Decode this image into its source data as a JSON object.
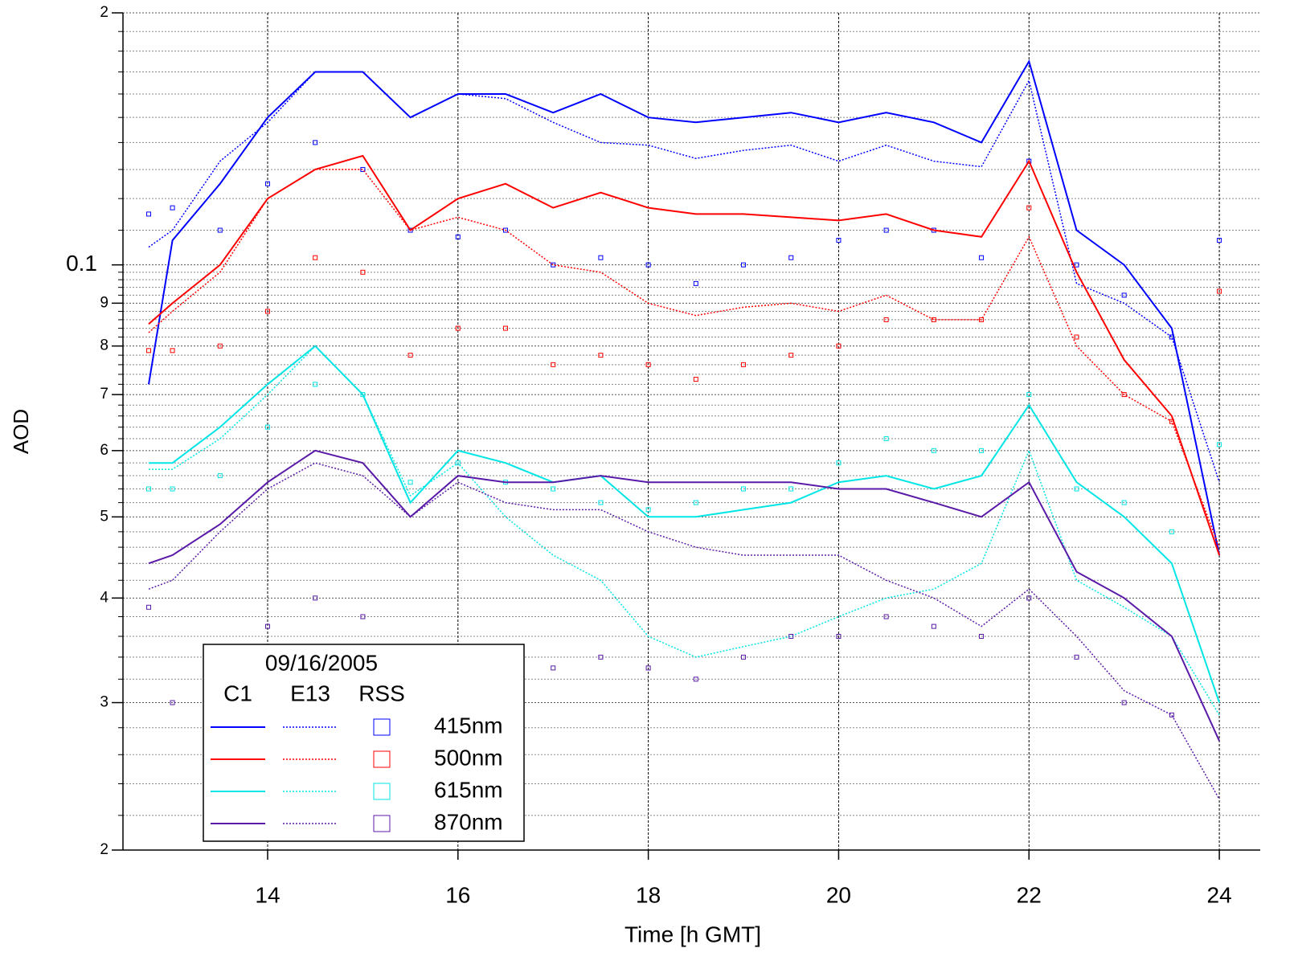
{
  "chart_data": {
    "type": "line",
    "x_label": "Time [h GMT]",
    "y_label": "AOD",
    "log_y": true,
    "grid": true,
    "xlim": [
      12.48,
      24.43
    ],
    "ylim": [
      0.02,
      0.2
    ],
    "xticks": [
      14,
      16,
      18,
      20,
      22,
      24
    ],
    "yticks": [
      {
        "value": 0.2,
        "label": "2"
      },
      0.1,
      {
        "value": 0.09,
        "label": "9"
      },
      {
        "value": 0.08,
        "label": "8"
      },
      {
        "value": 0.07,
        "label": "7"
      },
      {
        "value": 0.06,
        "label": "6"
      },
      {
        "value": 0.05,
        "label": "5"
      },
      {
        "value": 0.04,
        "label": "4"
      },
      {
        "value": 0.03,
        "label": "3"
      },
      {
        "value": 0.02,
        "label": "2"
      }
    ],
    "yminorticks": [
      0.022,
      0.024,
      0.026,
      0.028,
      0.032,
      0.034,
      0.036,
      0.038,
      0.042,
      0.044,
      0.046,
      0.048,
      0.052,
      0.054,
      0.056,
      0.058,
      0.062,
      0.064,
      0.066,
      0.068,
      0.072,
      0.074,
      0.076,
      0.078,
      0.082,
      0.084,
      0.086,
      0.088,
      0.092,
      0.094,
      0.096,
      0.098,
      0.11,
      0.12,
      0.13,
      0.14,
      0.15,
      0.16,
      0.17,
      0.18,
      0.19
    ],
    "legend_title": "09/16/2005",
    "legend_position": "lower left",
    "sources": [
      {
        "name": "C1",
        "style": "solid"
      },
      {
        "name": "E13",
        "style": "dotted"
      },
      {
        "name": "RSS",
        "style": "square"
      }
    ],
    "x": [
      12.75,
      13,
      13.5,
      14,
      14.5,
      15,
      15.5,
      16,
      16.5,
      17,
      17.5,
      18,
      18.5,
      19,
      19.5,
      20,
      20.5,
      21,
      21.5,
      22,
      22.5,
      23,
      23.5,
      24
    ],
    "series": [
      {
        "name": "415nm",
        "color": "#0000ff",
        "values": [
          [
            0.072,
            0.107,
            0.125,
            0.15,
            0.17,
            0.17,
            0.15,
            0.16,
            0.16,
            0.152,
            0.16,
            0.15,
            0.148,
            0.15,
            0.152,
            0.148,
            0.152,
            0.148,
            0.14,
            0.175,
            0.11,
            0.1,
            0.084,
            0.045
          ],
          [
            0.105,
            0.11,
            0.133,
            0.148,
            0.17,
            0.17,
            0.15,
            0.16,
            0.158,
            0.148,
            0.14,
            0.139,
            0.134,
            0.137,
            0.139,
            0.133,
            0.139,
            0.133,
            0.131,
            0.166,
            0.095,
            0.09,
            0.082,
            0.055
          ],
          [
            0.115,
            0.117,
            0.11,
            0.125,
            0.14,
            0.13,
            0.11,
            0.108,
            0.11,
            0.1,
            0.102,
            0.1,
            0.095,
            0.1,
            0.102,
            0.107,
            0.11,
            0.11,
            0.102,
            0.133,
            0.1,
            0.092,
            0.082,
            0.107
          ]
        ]
      },
      {
        "name": "500nm",
        "color": "#ff0000",
        "values": [
          [
            0.085,
            0.09,
            0.1,
            0.12,
            0.13,
            0.135,
            0.11,
            0.12,
            0.125,
            0.117,
            0.122,
            0.117,
            0.115,
            0.115,
            0.114,
            0.113,
            0.115,
            0.11,
            0.108,
            0.133,
            0.098,
            0.077,
            0.066,
            0.045
          ],
          [
            0.083,
            0.088,
            0.098,
            0.12,
            0.13,
            0.13,
            0.11,
            0.114,
            0.11,
            0.1,
            0.098,
            0.09,
            0.087,
            0.089,
            0.09,
            0.088,
            0.092,
            0.086,
            0.086,
            0.108,
            0.08,
            0.07,
            0.065,
            0.046
          ],
          [
            0.079,
            0.079,
            0.08,
            0.088,
            0.102,
            0.098,
            0.078,
            0.084,
            0.084,
            0.076,
            0.078,
            0.076,
            0.073,
            0.076,
            0.078,
            0.08,
            0.086,
            0.086,
            0.086,
            0.117,
            0.082,
            0.07,
            0.065,
            0.093
          ]
        ]
      },
      {
        "name": "615nm",
        "color": "#00e5e5",
        "values": [
          [
            0.058,
            0.058,
            0.064,
            0.072,
            0.08,
            0.07,
            0.052,
            0.06,
            0.058,
            0.055,
            0.056,
            0.05,
            0.05,
            0.051,
            0.052,
            0.055,
            0.056,
            0.054,
            0.056,
            0.068,
            0.055,
            0.05,
            0.044,
            0.03
          ],
          [
            0.057,
            0.057,
            0.062,
            0.07,
            0.08,
            0.07,
            0.053,
            0.058,
            0.05,
            0.045,
            0.042,
            0.036,
            0.034,
            0.035,
            0.036,
            0.038,
            0.04,
            0.041,
            0.044,
            0.06,
            0.042,
            0.039,
            0.036,
            0.029
          ],
          [
            0.054,
            0.054,
            0.056,
            0.064,
            0.072,
            0.07,
            0.055,
            0.058,
            0.055,
            0.054,
            0.052,
            0.051,
            0.052,
            0.054,
            0.054,
            0.058,
            0.062,
            0.06,
            0.06,
            0.07,
            0.054,
            0.052,
            0.048,
            0.061
          ]
        ]
      },
      {
        "name": "870nm",
        "color": "#5a1aa8",
        "values": [
          [
            0.044,
            0.045,
            0.049,
            0.055,
            0.06,
            0.058,
            0.05,
            0.056,
            0.055,
            0.055,
            0.056,
            0.055,
            0.055,
            0.055,
            0.055,
            0.054,
            0.054,
            0.052,
            0.05,
            0.055,
            0.043,
            0.04,
            0.036,
            0.027
          ],
          [
            0.041,
            0.042,
            0.048,
            0.054,
            0.058,
            0.056,
            0.05,
            0.055,
            0.052,
            0.051,
            0.051,
            0.048,
            0.046,
            0.045,
            0.045,
            0.045,
            0.042,
            0.04,
            0.037,
            0.041,
            0.036,
            0.031,
            0.029,
            0.023
          ],
          [
            0.039,
            0.03,
            0.032,
            0.037,
            0.04,
            0.038,
            0.034,
            0.034,
            0.034,
            0.033,
            0.034,
            0.033,
            0.032,
            0.034,
            0.036,
            0.036,
            0.038,
            0.037,
            0.036,
            0.04,
            0.034,
            0.03,
            0.029,
            null
          ]
        ]
      }
    ]
  }
}
